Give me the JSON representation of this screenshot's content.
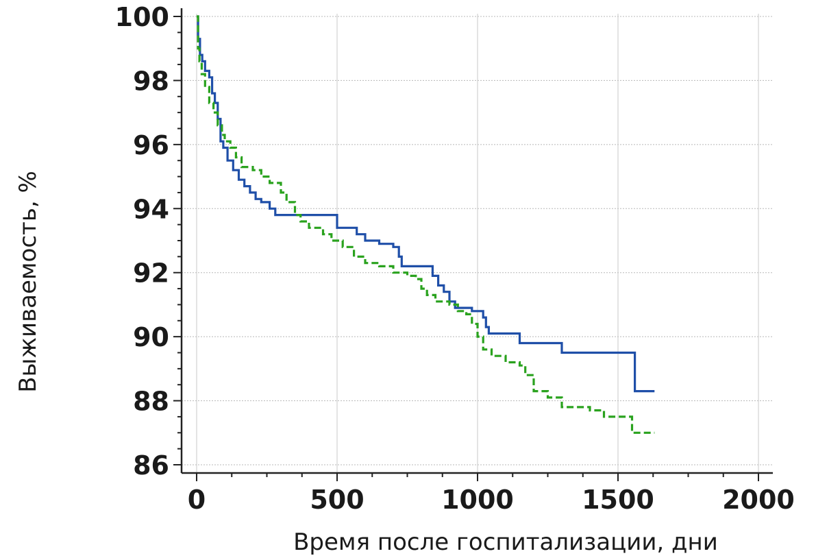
{
  "chart_data": {
    "type": "line",
    "title": "",
    "xlabel": "Время после госпитализации, дни",
    "ylabel": "Выживаемость, %",
    "xlim": [
      0,
      2000
    ],
    "ylim": [
      86,
      100
    ],
    "x_ticks": [
      "0",
      "500",
      "1000",
      "1500",
      "2000"
    ],
    "y_ticks": [
      "86",
      "88",
      "90",
      "92",
      "94",
      "96",
      "98",
      "100"
    ],
    "grid": true,
    "legend": "none",
    "series": [
      {
        "style": "solid",
        "color": "#1f4fa8",
        "x": [
          0,
          5,
          12,
          20,
          30,
          45,
          55,
          65,
          75,
          85,
          95,
          110,
          130,
          150,
          170,
          190,
          210,
          230,
          260,
          280,
          300,
          350,
          400,
          450,
          480,
          500,
          550,
          570,
          600,
          650,
          700,
          720,
          730,
          760,
          800,
          820,
          840,
          860,
          880,
          900,
          920,
          960,
          980,
          1000,
          1020,
          1030,
          1040,
          1100,
          1150,
          1200,
          1300,
          1400,
          1500,
          1550,
          1560,
          1630
        ],
        "y": [
          100,
          99.3,
          98.8,
          98.6,
          98.3,
          98.1,
          97.6,
          97.3,
          96.8,
          96.1,
          95.9,
          95.5,
          95.2,
          94.9,
          94.7,
          94.5,
          94.3,
          94.2,
          94.0,
          93.8,
          93.8,
          93.8,
          93.8,
          93.8,
          93.8,
          93.4,
          93.4,
          93.2,
          93.0,
          92.9,
          92.8,
          92.5,
          92.2,
          92.2,
          92.2,
          92.2,
          91.9,
          91.6,
          91.4,
          91.1,
          90.9,
          90.9,
          90.8,
          90.8,
          90.6,
          90.3,
          90.1,
          90.1,
          89.8,
          89.8,
          89.5,
          89.5,
          89.5,
          89.5,
          88.3,
          88.3
        ]
      },
      {
        "style": "dashed",
        "color": "#2aa21e",
        "x": [
          0,
          5,
          10,
          18,
          30,
          45,
          60,
          75,
          90,
          100,
          120,
          140,
          160,
          180,
          200,
          230,
          260,
          300,
          320,
          350,
          370,
          400,
          450,
          480,
          520,
          560,
          600,
          650,
          700,
          750,
          780,
          800,
          820,
          850,
          880,
          900,
          930,
          960,
          980,
          1000,
          1020,
          1050,
          1100,
          1150,
          1170,
          1200,
          1250,
          1300,
          1400,
          1450,
          1500,
          1550,
          1630
        ],
        "y": [
          100,
          99.0,
          98.6,
          98.2,
          97.8,
          97.3,
          97.0,
          96.6,
          96.3,
          96.1,
          95.9,
          95.6,
          95.3,
          95.3,
          95.2,
          95.0,
          94.8,
          94.5,
          94.2,
          93.8,
          93.6,
          93.4,
          93.2,
          93.0,
          92.8,
          92.5,
          92.3,
          92.2,
          92.0,
          91.9,
          91.8,
          91.5,
          91.3,
          91.1,
          91.1,
          91.0,
          90.8,
          90.7,
          90.4,
          90.0,
          89.6,
          89.4,
          89.2,
          89.1,
          88.8,
          88.3,
          88.1,
          87.8,
          87.7,
          87.5,
          87.5,
          87.0,
          87.0
        ]
      }
    ]
  }
}
